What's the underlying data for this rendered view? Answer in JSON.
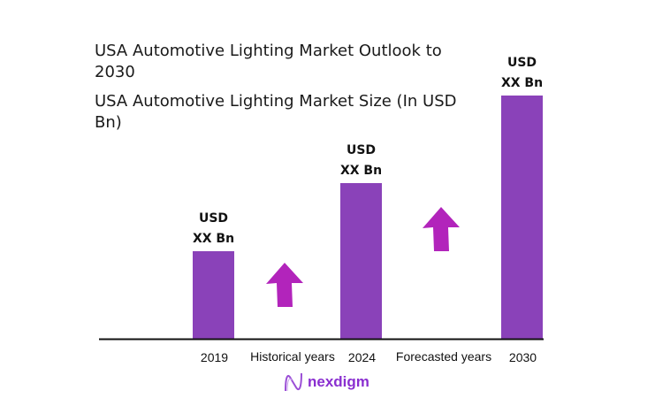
{
  "chart_data": {
    "type": "bar",
    "title": "USA Automotive Lighting Market Outlook to 2030",
    "subtitle": "USA Automotive Lighting Market Size (In USD Bn)",
    "categories": [
      "2019",
      "2024",
      "2030"
    ],
    "values": [
      36,
      64,
      100
    ],
    "value_scale": "relative (2030 = 100), actual values not disclosed",
    "data_labels": [
      [
        "USD",
        "XX Bn"
      ],
      [
        "USD",
        "XX Bn"
      ],
      [
        "USD",
        "XX Bn"
      ]
    ],
    "period_labels": [
      "Historical years",
      "Forecasted years"
    ],
    "xlabel": "",
    "ylabel": "",
    "grid": false,
    "bar_color": "#8a42b9",
    "arrow_color": "#b224bb",
    "arrows": [
      "up",
      "up"
    ]
  },
  "logo": {
    "text": "nexdigm",
    "color": "#8a2fd0"
  }
}
